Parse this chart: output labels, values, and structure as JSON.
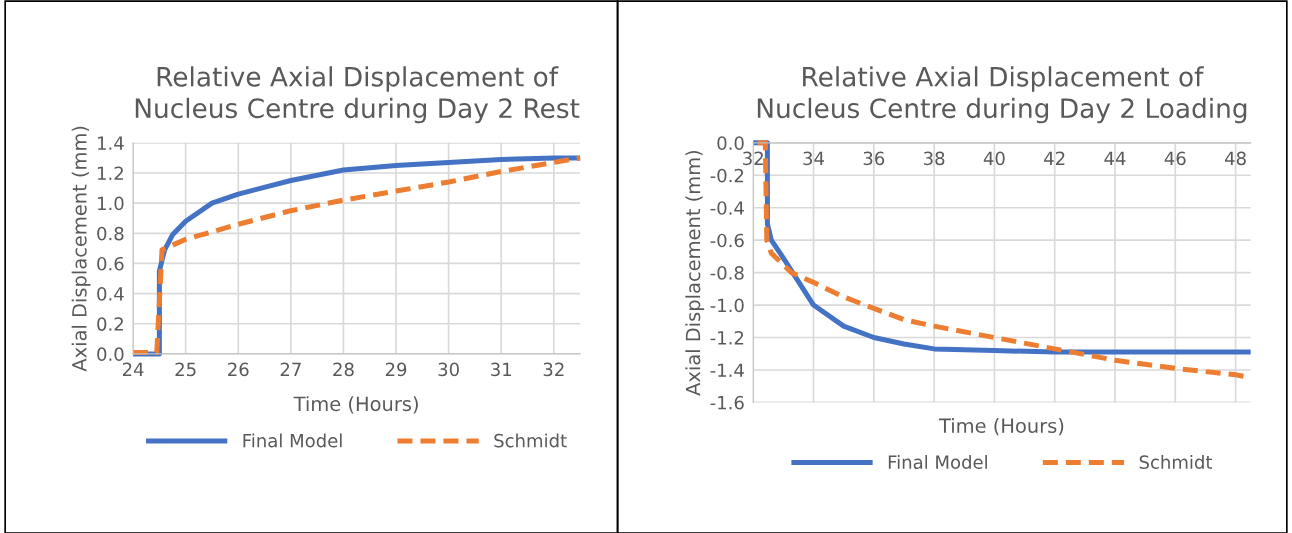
{
  "chart_data": [
    {
      "type": "line",
      "title": "Relative Axial Displacement of\nNucleus Centre during Day 2 Rest",
      "xlabel": "Time (Hours)",
      "ylabel": "Axial Displacement (mm)",
      "xlim": [
        24,
        32.5
      ],
      "xticks": [
        24,
        25,
        26,
        27,
        28,
        29,
        30,
        31,
        32
      ],
      "ylim": [
        0,
        1.4
      ],
      "yticks": [
        {
          "value": 0,
          "label": "0.0"
        },
        {
          "value": 0.2,
          "label": "0.2"
        },
        {
          "value": 0.4,
          "label": "0.4"
        },
        {
          "value": 0.6,
          "label": "0.6"
        },
        {
          "value": 0.8,
          "label": "0.8"
        },
        {
          "value": 1.0,
          "label": "1.0"
        },
        {
          "value": 1.2,
          "label": "1.2"
        },
        {
          "value": 1.4,
          "label": "1.4"
        }
      ],
      "grid": true,
      "legend": "bottom",
      "marker": "none",
      "series": [
        {
          "name": "Final Model",
          "color": "#4472c4",
          "line_style": "solid",
          "x": [
            24,
            24.5,
            24.5,
            24.6,
            24.75,
            25,
            25.5,
            26,
            27,
            28,
            29,
            30,
            31,
            32,
            32.5
          ],
          "values": [
            0,
            0,
            0.55,
            0.69,
            0.79,
            0.88,
            1.0,
            1.06,
            1.15,
            1.22,
            1.25,
            1.27,
            1.29,
            1.3,
            1.3
          ]
        },
        {
          "name": "Schmidt",
          "color": "#ed7d31",
          "line_style": "dashed",
          "x": [
            24,
            24.45,
            24.55,
            25,
            26,
            27,
            28,
            29,
            30,
            31,
            32,
            32.5
          ],
          "values": [
            0.01,
            0.01,
            0.69,
            0.76,
            0.86,
            0.95,
            1.02,
            1.08,
            1.14,
            1.21,
            1.27,
            1.3
          ]
        }
      ]
    },
    {
      "type": "line",
      "title": "Relative Axial Displacement of\nNucleus Centre during Day 2 Loading",
      "xlabel": "Time (Hours)",
      "ylabel": "Axial Displacement (mm)",
      "xlim": [
        32,
        48.5
      ],
      "xticks": [
        32,
        34,
        36,
        38,
        40,
        42,
        44,
        46,
        48
      ],
      "ylim": [
        -1.6,
        0
      ],
      "yticks": [
        {
          "value": -1.6,
          "label": "-1.6"
        },
        {
          "value": -1.4,
          "label": "-1.4"
        },
        {
          "value": -1.2,
          "label": "-1.2"
        },
        {
          "value": -1.0,
          "label": "-1.0"
        },
        {
          "value": -0.8,
          "label": "-0.8"
        },
        {
          "value": -0.6,
          "label": "-0.6"
        },
        {
          "value": -0.4,
          "label": "-0.4"
        },
        {
          "value": -0.2,
          "label": "-0.2"
        },
        {
          "value": 0,
          "label": "0.0"
        }
      ],
      "grid": true,
      "legend": "bottom",
      "marker": "none",
      "series": [
        {
          "name": "Final Model",
          "color": "#4472c4",
          "line_style": "solid",
          "x": [
            32,
            32.47,
            32.47,
            32.6,
            33,
            34,
            35,
            36,
            37,
            38,
            40,
            42,
            48.5
          ],
          "values": [
            0,
            0,
            -0.5,
            -0.6,
            -0.71,
            -1.0,
            -1.13,
            -1.2,
            -1.24,
            -1.27,
            -1.28,
            -1.29,
            -1.29
          ]
        },
        {
          "name": "Schmidt",
          "color": "#ed7d31",
          "line_style": "dashed",
          "x": [
            32.15,
            32.4,
            32.45,
            32.6,
            33.27,
            34,
            35,
            36,
            37,
            38,
            40,
            42,
            44,
            46,
            48,
            48.3
          ],
          "values": [
            0,
            0,
            -0.6,
            -0.68,
            -0.8,
            -0.86,
            -0.95,
            -1.02,
            -1.09,
            -1.13,
            -1.2,
            -1.27,
            -1.34,
            -1.39,
            -1.43,
            -1.44
          ]
        }
      ]
    }
  ]
}
